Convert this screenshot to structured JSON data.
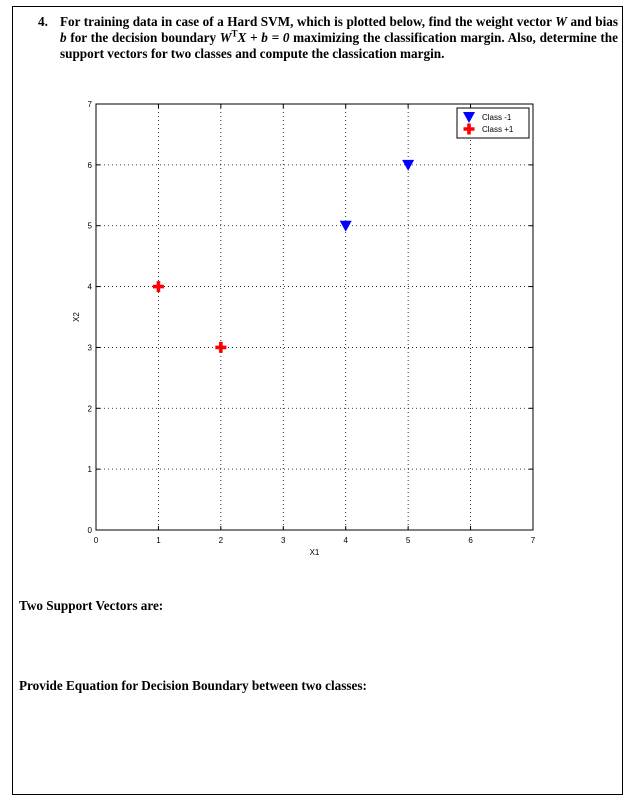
{
  "question": {
    "number": "4.",
    "line1_a": "For training data in case of a Hard SVM, which is plotted below, find the weight vector ",
    "weight_symbol": "W",
    "line1_b": " and",
    "line2_a": "bias ",
    "bias_symbol": "b",
    "line2_b": " for the decision boundary ",
    "equation_w": "W",
    "equation_sup": "T",
    "equation_rest": "X + b = 0",
    "line2_c": " maximizing the classification margin. Also, determine the support vectors for two classes and compute the classication margin."
  },
  "chart_data": {
    "type": "scatter",
    "xlabel": "X1",
    "ylabel": "X2",
    "xlim": [
      0,
      7
    ],
    "ylim": [
      0,
      7
    ],
    "xticks": [
      "0",
      "1",
      "2",
      "3",
      "4",
      "5",
      "6",
      "7"
    ],
    "yticks": [
      "0",
      "1",
      "2",
      "3",
      "4",
      "5",
      "6",
      "7"
    ],
    "grid": true,
    "legend_position": "top-right",
    "series": [
      {
        "name": "Class -1",
        "marker": "triangle-down",
        "color": "#0000ff",
        "points": [
          [
            4,
            5
          ],
          [
            5,
            6
          ]
        ]
      },
      {
        "name": "Class +1",
        "marker": "plus",
        "color": "#ff0000",
        "points": [
          [
            1,
            4
          ],
          [
            2,
            3
          ]
        ]
      }
    ]
  },
  "sections": {
    "support_vectors_label": "Two Support Vectors are:",
    "decision_boundary_label": "Provide Equation for Decision Boundary between two classes:"
  }
}
